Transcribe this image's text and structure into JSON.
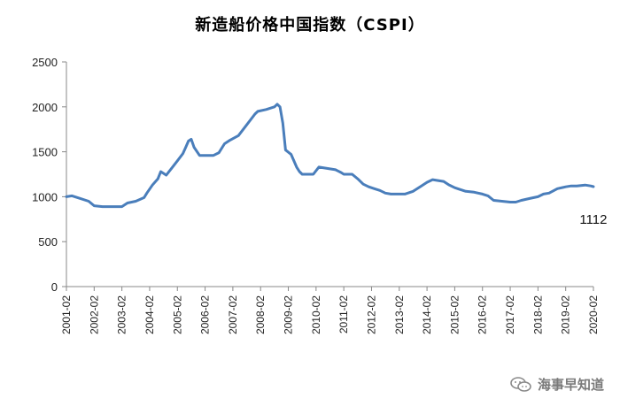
{
  "chart_data": {
    "type": "line",
    "title": "新造船价格中国指数（CSPI）",
    "ylim": [
      0,
      2500
    ],
    "yticks": [
      "0",
      "500",
      "1000",
      "1500",
      "2000",
      "2500"
    ],
    "xticks": [
      "2001-02",
      "2002-02",
      "2003-02",
      "2004-02",
      "2005-02",
      "2006-02",
      "2007-02",
      "2008-02",
      "2009-02",
      "2010-02",
      "2011-02",
      "2012-02",
      "2013-02",
      "2014-02",
      "2015-02",
      "2016-02",
      "2017-02",
      "2018-02",
      "2019-02",
      "2020-02"
    ],
    "series": [
      {
        "color": "#4a7ebb",
        "x": [
          2001.1,
          2001.3,
          2001.6,
          2001.9,
          2002.1,
          2002.4,
          2002.8,
          2003.1,
          2003.3,
          2003.6,
          2003.9,
          2004.0,
          2004.2,
          2004.4,
          2004.5,
          2004.7,
          2004.9,
          2005.1,
          2005.3,
          2005.4,
          2005.5,
          2005.6,
          2005.7,
          2005.9,
          2006.1,
          2006.4,
          2006.6,
          2006.8,
          2007.0,
          2007.3,
          2007.6,
          2007.9,
          2008.0,
          2008.3,
          2008.5,
          2008.6,
          2008.7,
          2008.8,
          2008.9,
          2009.0,
          2009.2,
          2009.4,
          2009.5,
          2009.6,
          2009.8,
          2010.0,
          2010.2,
          2010.4,
          2010.6,
          2010.8,
          2011.0,
          2011.1,
          2011.4,
          2011.6,
          2011.8,
          2012.0,
          2012.2,
          2012.4,
          2012.6,
          2012.8,
          2013.0,
          2013.3,
          2013.6,
          2013.9,
          2014.1,
          2014.3,
          2014.5,
          2014.7,
          2014.9,
          2015.1,
          2015.3,
          2015.5,
          2015.8,
          2016.1,
          2016.3,
          2016.5,
          2016.8,
          2017.1,
          2017.3,
          2017.5,
          2017.8,
          2018.1,
          2018.3,
          2018.5,
          2018.8,
          2019.1,
          2019.3,
          2019.5,
          2019.8,
          2020.0,
          2020.1
        ],
        "y": [
          1000,
          1010,
          980,
          950,
          900,
          890,
          890,
          890,
          930,
          950,
          990,
          1040,
          1130,
          1200,
          1280,
          1240,
          1320,
          1400,
          1480,
          1550,
          1620,
          1640,
          1550,
          1460,
          1460,
          1460,
          1490,
          1590,
          1630,
          1680,
          1800,
          1920,
          1950,
          1970,
          1990,
          2000,
          2030,
          2000,
          1820,
          1520,
          1470,
          1330,
          1280,
          1250,
          1250,
          1250,
          1330,
          1320,
          1310,
          1300,
          1270,
          1250,
          1250,
          1200,
          1140,
          1110,
          1090,
          1070,
          1040,
          1030,
          1030,
          1030,
          1060,
          1120,
          1160,
          1190,
          1180,
          1170,
          1130,
          1100,
          1080,
          1060,
          1050,
          1030,
          1010,
          960,
          950,
          940,
          940,
          960,
          980,
          1000,
          1030,
          1040,
          1090,
          1110,
          1120,
          1120,
          1130,
          1120,
          1112
        ]
      }
    ],
    "annotations": [
      {
        "text": "1112",
        "x": 2019.6,
        "y": 700
      }
    ]
  },
  "watermark": {
    "text": "海事早知道",
    "icon": "wechat-icon"
  }
}
